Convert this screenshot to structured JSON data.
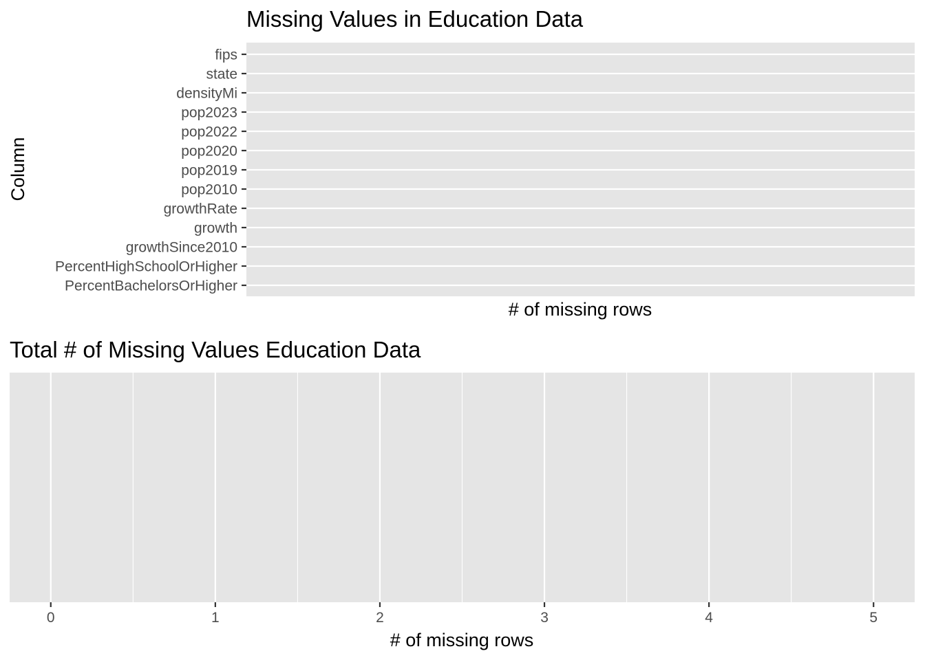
{
  "chart_data": [
    {
      "type": "bar",
      "orientation": "horizontal",
      "title": "Missing Values in Education Data",
      "xlabel": "# of missing rows",
      "ylabel": "Column",
      "categories": [
        "fips",
        "state",
        "densityMi",
        "pop2023",
        "pop2022",
        "pop2020",
        "pop2019",
        "pop2010",
        "growthRate",
        "growth",
        "growthSince2010",
        "PercentHighSchoolOrHigher",
        "PercentBachelorsOrHigher"
      ],
      "values": [
        0,
        0,
        0,
        0,
        0,
        0,
        0,
        0,
        0,
        0,
        0,
        0,
        0
      ],
      "grid": true,
      "panel_background": "#e5e5e5",
      "grid_color": "#ffffff"
    },
    {
      "type": "bar",
      "title": "Total # of Missing Values Education Data",
      "xlabel": "# of missing rows",
      "ylabel": "",
      "x_ticks": [
        0,
        1,
        2,
        3,
        4,
        5
      ],
      "xlim": [
        -0.25,
        5.25
      ],
      "categories": [],
      "values": [],
      "grid": true,
      "panel_background": "#e5e5e5",
      "grid_color": "#ffffff"
    }
  ]
}
